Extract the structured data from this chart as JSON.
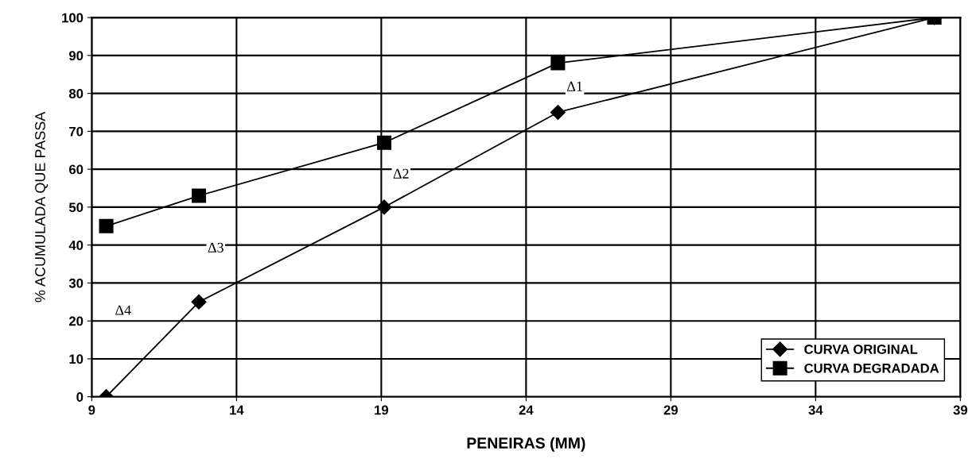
{
  "chart_data": {
    "type": "line",
    "xlabel": "PENEIRAS (MM)",
    "ylabel": "% ACUMULADA QUE PASSA",
    "x": [
      9.5,
      12.7,
      19.1,
      25.1,
      38.1
    ],
    "series": [
      {
        "name": "CURVA ORIGINAL",
        "color": "#000000",
        "marker": "diamond",
        "values": [
          0,
          25,
          50,
          75,
          100
        ]
      },
      {
        "name": "CURVA DEGRADADA",
        "color": "#000000",
        "marker": "square",
        "values": [
          45,
          53,
          67,
          88,
          100
        ]
      }
    ],
    "xlim": [
      9,
      39
    ],
    "xticks": [
      9,
      14,
      19,
      24,
      29,
      34,
      39
    ],
    "ylim": [
      0,
      100
    ],
    "yticks": [
      0,
      10,
      20,
      30,
      40,
      50,
      60,
      70,
      80,
      90,
      100
    ],
    "grid": true,
    "legend": "bottom right",
    "line_style": "solid",
    "annotations": [
      "Δ1",
      "Δ2",
      "Δ3",
      "Δ4"
    ]
  }
}
